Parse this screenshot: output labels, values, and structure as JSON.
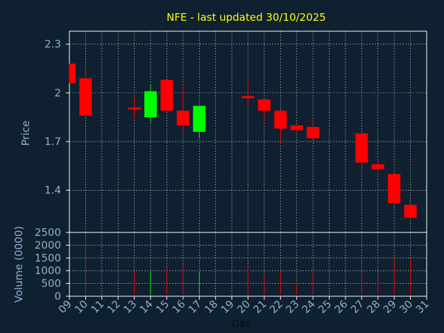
{
  "chart_data": {
    "type": "candlestick",
    "title": "NFE - last updated 30/10/2025",
    "price_ylabel": "Price",
    "volume_ylabel": "Volume (0000)",
    "xlabel": "Day",
    "price_ylim": [
      1.14,
      2.38
    ],
    "price_yticks": [
      "2.3",
      "2",
      "1.7",
      "1.4"
    ],
    "price_ytick_values": [
      2.3,
      2.0,
      1.7,
      1.4
    ],
    "volume_ylim": [
      0,
      2500
    ],
    "volume_yticks": [
      "2500",
      "2000",
      "1500",
      "1000",
      "500",
      "0"
    ],
    "volume_ytick_values": [
      2500,
      2000,
      1500,
      1000,
      500,
      0
    ],
    "x_tick_labels": [
      "09",
      "10",
      "11",
      "12",
      "13",
      "14",
      "15",
      "16",
      "17",
      "18",
      "19",
      "20",
      "21",
      "22",
      "23",
      "24",
      "25",
      "26",
      "27",
      "28",
      "29",
      "30",
      "31"
    ],
    "grid": true,
    "colors": {
      "background": "#0f2030",
      "text": "#8fb0d0",
      "title": "#ffff00",
      "up": "#00ff00",
      "down": "#ff0000",
      "grid": "#ffffff"
    },
    "candles": [
      {
        "day": 9,
        "open": 2.18,
        "high": 2.18,
        "low": 2.06,
        "close": 2.06,
        "volume": 0
      },
      {
        "day": 10,
        "open": 2.09,
        "high": 2.18,
        "low": 1.85,
        "close": 1.86,
        "volume": 2050
      },
      {
        "day": 13,
        "open": 1.91,
        "high": 1.98,
        "low": 1.84,
        "close": 1.9,
        "volume": 950
      },
      {
        "day": 14,
        "open": 1.85,
        "high": 2.05,
        "low": 1.82,
        "close": 2.01,
        "volume": 1000
      },
      {
        "day": 15,
        "open": 2.08,
        "high": 2.08,
        "low": 1.89,
        "close": 1.89,
        "volume": 1150
      },
      {
        "day": 16,
        "open": 1.89,
        "high": 2.05,
        "low": 1.76,
        "close": 1.8,
        "volume": 1250
      },
      {
        "day": 17,
        "open": 1.76,
        "high": 1.92,
        "low": 1.72,
        "close": 1.92,
        "volume": 950
      },
      {
        "day": 20,
        "open": 1.98,
        "high": 2.08,
        "low": 1.92,
        "close": 1.97,
        "volume": 1150
      },
      {
        "day": 21,
        "open": 1.96,
        "high": 1.96,
        "low": 1.83,
        "close": 1.89,
        "volume": 800
      },
      {
        "day": 22,
        "open": 1.89,
        "high": 1.89,
        "low": 1.69,
        "close": 1.78,
        "volume": 950
      },
      {
        "day": 23,
        "open": 1.8,
        "high": 1.8,
        "low": 1.76,
        "close": 1.77,
        "volume": 550
      },
      {
        "day": 24,
        "open": 1.79,
        "high": 1.84,
        "low": 1.71,
        "close": 1.72,
        "volume": 1000
      },
      {
        "day": 27,
        "open": 1.75,
        "high": 1.75,
        "low": 1.57,
        "close": 1.57,
        "volume": 950
      },
      {
        "day": 28,
        "open": 1.56,
        "high": 1.59,
        "low": 1.52,
        "close": 1.53,
        "volume": 800
      },
      {
        "day": 29,
        "open": 1.5,
        "high": 1.5,
        "low": 1.32,
        "close": 1.32,
        "volume": 1450
      },
      {
        "day": 30,
        "open": 1.31,
        "high": 1.31,
        "low": 1.23,
        "close": 1.23,
        "volume": 1450
      }
    ]
  }
}
